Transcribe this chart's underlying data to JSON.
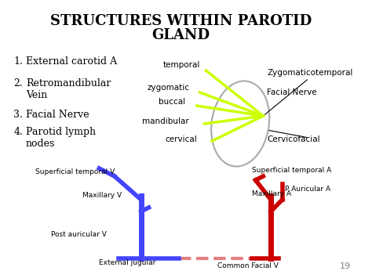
{
  "title_line1": "STRUCTURES WITHIN PAROTID",
  "title_line2": "GLAND",
  "list_items": [
    "External carotid A",
    "Retromandibular\nVein",
    "Facial Nerve",
    "Parotid lymph\nnodes"
  ],
  "nerve_labels": [
    "temporal",
    "zygomatic",
    "buccal",
    "mandibular",
    "cervical"
  ],
  "right_labels": [
    "Zygomaticotemporal",
    "Facial Nerve",
    "Cervicofacial"
  ],
  "bottom_labels_left": [
    "Superficial temporal V",
    "Maxillary V",
    "Post auricular V",
    "External jugular"
  ],
  "bottom_labels_right": [
    "Superficial temporal A",
    "Maxillary A",
    "P Auricular A",
    "Common Facial V"
  ],
  "bg_color": "#ffffff",
  "title_color": "#000000",
  "nerve_color": "#ccff00",
  "vein_color": "#4444ff",
  "artery_color": "#cc0000",
  "loop_color": "#aaaaaa",
  "text_color": "#000000",
  "number_19": "19"
}
